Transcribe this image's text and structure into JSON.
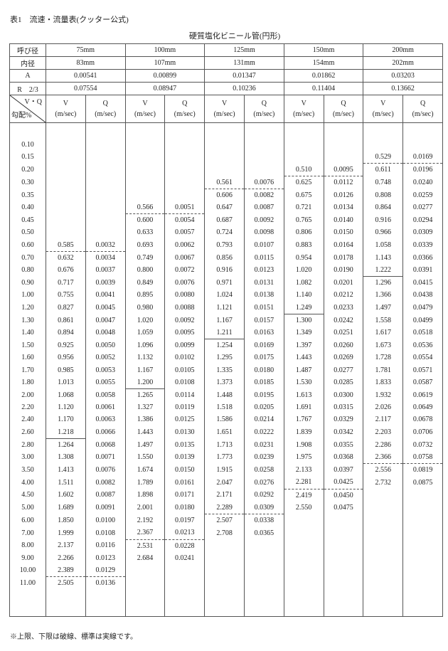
{
  "caption": "表1　流速・流量表(クッター公式)",
  "subtitle": "硬質塩化ビニール管(円形)",
  "header": {
    "nominal_label": "呼び径",
    "inner_label": "内径",
    "area_label": "A",
    "r_label": "R　2/3",
    "vq_label": "V・Q",
    "gradient_label": "勾配%",
    "v_label": "V",
    "q_label": "Q",
    "v_unit": "(m/sec)",
    "q_unit": "(m/sec)"
  },
  "gradients": [
    "0.10",
    "0.15",
    "0.20",
    "0.30",
    "0.35",
    "0.40",
    "0.45",
    "0.50",
    "0.60",
    "0.70",
    "0.80",
    "0.90",
    "1.00",
    "1.20",
    "1.30",
    "1.40",
    "1.50",
    "1.60",
    "1.70",
    "1.80",
    "2.00",
    "2.20",
    "2.40",
    "2.60",
    "2.80",
    "3.00",
    "3.50",
    "4.00",
    "4.50",
    "5.00",
    "6.00",
    "7.00",
    "8.00",
    "9.00",
    "10.00",
    "11.00"
  ],
  "pipes": [
    {
      "nominal": "75mm",
      "inner": "83mm",
      "A": "0.00541",
      "R23": "0.07554",
      "start": "0.60",
      "upper_dashed_after": "0.60",
      "standard_solid_after": "2.60",
      "lower_dashed_after": "10.00",
      "V": [
        "0.585",
        "0.632",
        "0.676",
        "0.717",
        "0.755",
        "0.827",
        "0.861",
        "0.894",
        "0.925",
        "0.956",
        "0.985",
        "1.013",
        "1.068",
        "1.120",
        "1.170",
        "1.218",
        "1.264",
        "1.308",
        "1.413",
        "1.511",
        "1.602",
        "1.689",
        "1.850",
        "1.999",
        "2.137",
        "2.266",
        "2.389",
        "2.505"
      ],
      "Q": [
        "0.0032",
        "0.0034",
        "0.0037",
        "0.0039",
        "0.0041",
        "0.0045",
        "0.0047",
        "0.0048",
        "0.0050",
        "0.0052",
        "0.0053",
        "0.0055",
        "0.0058",
        "0.0061",
        "0.0063",
        "0.0066",
        "0.0068",
        "0.0071",
        "0.0076",
        "0.0082",
        "0.0087",
        "0.0091",
        "0.0100",
        "0.0108",
        "0.0116",
        "0.0123",
        "0.0129",
        "0.0136"
      ]
    },
    {
      "nominal": "100mm",
      "inner": "107mm",
      "A": "0.00899",
      "R23": "0.08947",
      "start": "0.40",
      "upper_dashed_after": "0.40",
      "standard_solid_after": "1.80",
      "lower_dashed_after": "7.00",
      "V": [
        "0.566",
        "0.600",
        "0.633",
        "0.693",
        "0.749",
        "0.800",
        "0.849",
        "0.895",
        "0.980",
        "1.020",
        "1.059",
        "1.096",
        "1.132",
        "1.167",
        "1.200",
        "1.265",
        "1.327",
        "1.386",
        "1.443",
        "1.497",
        "1.550",
        "1.674",
        "1.789",
        "1.898",
        "2.001",
        "2.192",
        "2.367",
        "2.531",
        "2.684"
      ],
      "Q": [
        "0.0051",
        "0.0054",
        "0.0057",
        "0.0062",
        "0.0067",
        "0.0072",
        "0.0076",
        "0.0080",
        "0.0088",
        "0.0092",
        "0.0095",
        "0.0099",
        "0.0102",
        "0.0105",
        "0.0108",
        "0.0114",
        "0.0119",
        "0.0125",
        "0.0130",
        "0.0135",
        "0.0139",
        "0.0150",
        "0.0161",
        "0.0171",
        "0.0180",
        "0.0197",
        "0.0213",
        "0.0228",
        "0.0241"
      ]
    },
    {
      "nominal": "125mm",
      "inner": "131mm",
      "A": "0.01347",
      "R23": "0.10236",
      "start": "0.30",
      "upper_dashed_after": "0.30",
      "standard_solid_after": "1.40",
      "lower_dashed_after": "5.00",
      "V": [
        "0.561",
        "0.606",
        "0.647",
        "0.687",
        "0.724",
        "0.793",
        "0.856",
        "0.916",
        "0.971",
        "1.024",
        "1.121",
        "1.167",
        "1.211",
        "1.254",
        "1.295",
        "1.335",
        "1.373",
        "1.448",
        "1.518",
        "1.586",
        "1.651",
        "1.713",
        "1.773",
        "1.915",
        "2.047",
        "2.171",
        "2.289",
        "2.507",
        "2.708"
      ],
      "Q": [
        "0.0076",
        "0.0082",
        "0.0087",
        "0.0092",
        "0.0098",
        "0.0107",
        "0.0115",
        "0.0123",
        "0.0131",
        "0.0138",
        "0.0151",
        "0.0157",
        "0.0163",
        "0.0169",
        "0.0175",
        "0.0180",
        "0.0185",
        "0.0195",
        "0.0205",
        "0.0214",
        "0.0222",
        "0.0231",
        "0.0239",
        "0.0258",
        "0.0276",
        "0.0292",
        "0.0309",
        "0.0338",
        "0.0365"
      ]
    },
    {
      "nominal": "150mm",
      "inner": "154mm",
      "A": "0.01862",
      "R23": "0.11404",
      "start": "0.20",
      "upper_dashed_after": "0.20",
      "standard_solid_after": "1.20",
      "lower_dashed_after": "4.00",
      "V": [
        "0.510",
        "0.625",
        "0.675",
        "0.721",
        "0.765",
        "0.806",
        "0.883",
        "0.954",
        "1.020",
        "1.082",
        "1.140",
        "1.249",
        "1.300",
        "1.349",
        "1.397",
        "1.443",
        "1.487",
        "1.530",
        "1.613",
        "1.691",
        "1.767",
        "1.839",
        "1.908",
        "1.975",
        "2.133",
        "2.281",
        "2.419",
        "2.550"
      ],
      "Q": [
        "0.0095",
        "0.0112",
        "0.0126",
        "0.0134",
        "0.0140",
        "0.0150",
        "0.0164",
        "0.0178",
        "0.0190",
        "0.0201",
        "0.0212",
        "0.0233",
        "0.0242",
        "0.0251",
        "0.0260",
        "0.0269",
        "0.0277",
        "0.0285",
        "0.0300",
        "0.0315",
        "0.0329",
        "0.0342",
        "0.0355",
        "0.0368",
        "0.0397",
        "0.0425",
        "0.0450",
        "0.0475"
      ]
    },
    {
      "nominal": "200mm",
      "inner": "202mm",
      "A": "0.03203",
      "R23": "0.13662",
      "start": "0.15",
      "upper_dashed_after": "0.15",
      "standard_solid_after": "0.80",
      "lower_dashed_after": "3.00",
      "V": [
        "0.529",
        "0.611",
        "0.748",
        "0.808",
        "0.864",
        "0.916",
        "0.966",
        "1.058",
        "1.143",
        "1.222",
        "1.296",
        "1.366",
        "1.497",
        "1.558",
        "1.617",
        "1.673",
        "1.728",
        "1.781",
        "1.833",
        "1.932",
        "2.026",
        "2.117",
        "2.203",
        "2.286",
        "2.366",
        "2.556",
        "2.732"
      ],
      "Q": [
        "0.0169",
        "0.0196",
        "0.0240",
        "0.0259",
        "0.0277",
        "0.0294",
        "0.0309",
        "0.0339",
        "0.0366",
        "0.0391",
        "0.0415",
        "0.0438",
        "0.0479",
        "0.0499",
        "0.0518",
        "0.0536",
        "0.0554",
        "0.0571",
        "0.0587",
        "0.0619",
        "0.0649",
        "0.0678",
        "0.0706",
        "0.0732",
        "0.0758",
        "0.0819",
        "0.0875"
      ]
    }
  ],
  "note": "※上限、下限は破線、標準は実線です。"
}
